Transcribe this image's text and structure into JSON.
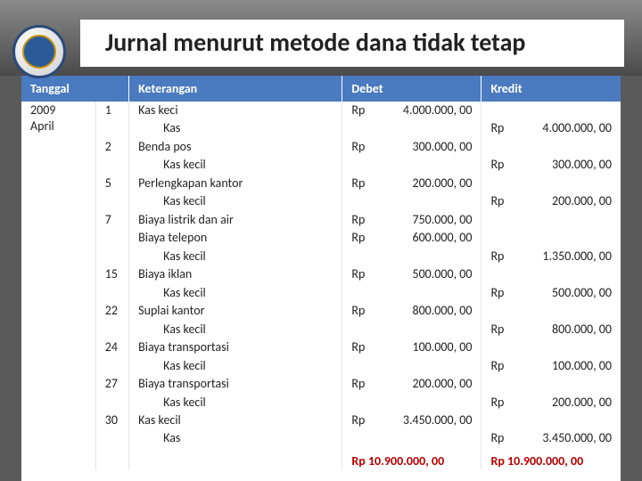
{
  "title": "Jurnal menurut metode dana tidak tetap",
  "logo": {
    "top_text": "TUT WURI HANDAYANI",
    "border_color": "#2a4a7a",
    "inner_color": "#2a5a9a",
    "ring_color": "#c8920a"
  },
  "colors": {
    "header_bg": "#4a7abf",
    "header_fg": "#ffffff",
    "page_bg": "#5a5a5a"
  },
  "columns": {
    "tanggal": "Tanggal",
    "keterangan": "Keterangan",
    "debet": "Debet",
    "kredit": "Kredit"
  },
  "date": {
    "year": "2009",
    "month": "April"
  },
  "rows": [
    {
      "day": "1",
      "desc": "Kas keci",
      "sub": "Kas",
      "debet": {
        "cur": "Rp",
        "num": "4.000.000, 00"
      },
      "kredit": {
        "cur": "Rp",
        "num": "4.000.000, 00"
      }
    },
    {
      "day": "2",
      "desc": "Benda pos",
      "sub": "Kas kecil",
      "debet": {
        "cur": "Rp",
        "num": "300.000, 00"
      },
      "kredit": {
        "cur": "Rp",
        "num": "300.000, 00"
      }
    },
    {
      "day": "5",
      "desc": "Perlengkapan kantor",
      "sub": "Kas kecil",
      "debet": {
        "cur": "Rp",
        "num": "200.000, 00"
      },
      "kredit": {
        "cur": "Rp",
        "num": "200.000, 00"
      }
    },
    {
      "day": "7",
      "desc": "Biaya listrik dan air",
      "sub": "",
      "debet": {
        "cur": "Rp",
        "num": "750.000, 00"
      },
      "kredit": null
    },
    {
      "day": "",
      "desc": "Biaya telepon",
      "sub": "Kas kecil",
      "debet": {
        "cur": "Rp",
        "num": "600.000, 00"
      },
      "kredit": {
        "cur": "Rp",
        "num": "1.350.000, 00"
      }
    },
    {
      "day": "15",
      "desc": "Biaya iklan",
      "sub": "Kas kecil",
      "debet": {
        "cur": "Rp",
        "num": "500.000, 00"
      },
      "kredit": {
        "cur": "Rp",
        "num": "500.000, 00"
      }
    },
    {
      "day": "22",
      "desc": "Suplai kantor",
      "sub": "Kas kecil",
      "debet": {
        "cur": "Rp",
        "num": "800.000, 00"
      },
      "kredit": {
        "cur": "Rp",
        "num": "800.000, 00"
      }
    },
    {
      "day": "24",
      "desc": "Biaya transportasi",
      "sub": "Kas kecil",
      "debet": {
        "cur": "Rp",
        "num": "100.000, 00"
      },
      "kredit": {
        "cur": "Rp",
        "num": "100.000, 00"
      }
    },
    {
      "day": "27",
      "desc": "Biaya transportasi",
      "sub": "Kas kecil",
      "debet": {
        "cur": "Rp",
        "num": "200.000, 00"
      },
      "kredit": {
        "cur": "Rp",
        "num": "200.000, 00"
      }
    },
    {
      "day": "30",
      "desc": "Kas kecil",
      "sub": "Kas",
      "debet": {
        "cur": "Rp",
        "num": "3.450.000, 00"
      },
      "kredit": {
        "cur": "Rp",
        "num": "3.450.000, 00"
      }
    }
  ],
  "cutoff": {
    "debet": "Rp 10.900.000, 00",
    "kredit": "Rp 10.900.000, 00"
  }
}
